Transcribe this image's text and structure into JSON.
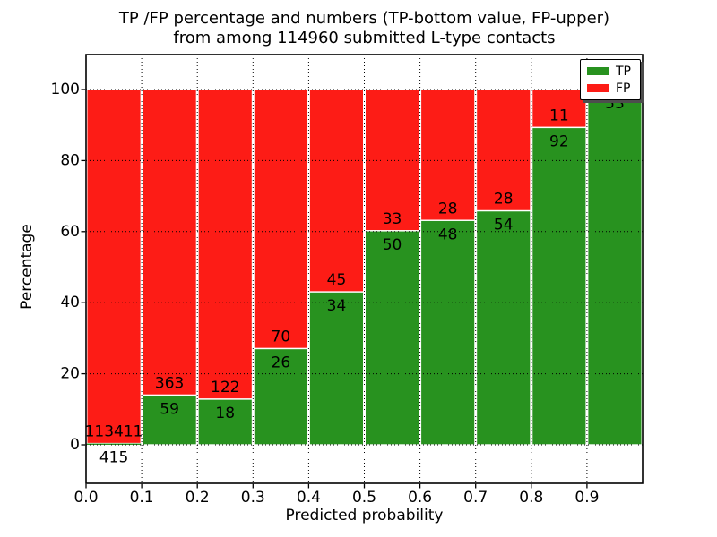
{
  "figure": {
    "title_line1": "TP /FP percentage and numbers (TP-bottom value, FP-upper)",
    "title_line2": "from among 114960 submitted L-type contacts",
    "total_submitted": 114960
  },
  "legend": {
    "position": "upper right",
    "entries": [
      {
        "label": "TP",
        "color": "#28921f"
      },
      {
        "label": "FP",
        "color": "#fd1c16"
      }
    ]
  },
  "colors": {
    "tp_green": "#28921f",
    "fp_red": "#fd1c16",
    "axis_black": "#000000",
    "background": "#ffffff",
    "bar_edge_white": "#ffffff",
    "legend_shadow_gray": "#4d4d4d"
  },
  "chart_data": {
    "type": "bar",
    "stacked": true,
    "title": "TP /FP percentage and numbers (TP-bottom value, FP-upper)\nfrom among 114960 submitted L-type contacts",
    "xlabel": "Predicted probability",
    "ylabel": "Percentage",
    "xlim": [
      0.0,
      1.0
    ],
    "ylim": [
      -11,
      110
    ],
    "grid": "dotted",
    "legend_position": "upper right",
    "x_tick_labels": [
      "0.0",
      "0.1",
      "0.2",
      "0.3",
      "0.4",
      "0.5",
      "0.6",
      "0.7",
      "0.8",
      "0.9"
    ],
    "y_tick_values": [
      0,
      20,
      40,
      60,
      80,
      100
    ],
    "bin_width": 0.1,
    "series": [
      {
        "name": "TP",
        "color": "#28921f",
        "role": "bottom segment, percent of bin"
      },
      {
        "name": "FP",
        "color": "#fd1c16",
        "role": "upper segment, percent of bin"
      }
    ],
    "bins": [
      {
        "x_start": 0.0,
        "x_end": 0.1,
        "tp_count": 415,
        "fp_count": 113411,
        "tp_pct": 0.36,
        "fp_pct": 99.64
      },
      {
        "x_start": 0.1,
        "x_end": 0.2,
        "tp_count": 59,
        "fp_count": 363,
        "tp_pct": 13.98,
        "fp_pct": 86.02
      },
      {
        "x_start": 0.2,
        "x_end": 0.3,
        "tp_count": 18,
        "fp_count": 122,
        "tp_pct": 12.86,
        "fp_pct": 87.14
      },
      {
        "x_start": 0.3,
        "x_end": 0.4,
        "tp_count": 26,
        "fp_count": 70,
        "tp_pct": 27.08,
        "fp_pct": 72.92
      },
      {
        "x_start": 0.4,
        "x_end": 0.5,
        "tp_count": 34,
        "fp_count": 45,
        "tp_pct": 43.04,
        "fp_pct": 56.96
      },
      {
        "x_start": 0.5,
        "x_end": 0.6,
        "tp_count": 50,
        "fp_count": 33,
        "tp_pct": 60.24,
        "fp_pct": 39.76
      },
      {
        "x_start": 0.6,
        "x_end": 0.7,
        "tp_count": 48,
        "fp_count": 28,
        "tp_pct": 63.16,
        "fp_pct": 36.84
      },
      {
        "x_start": 0.7,
        "x_end": 0.8,
        "tp_count": 54,
        "fp_count": 28,
        "tp_pct": 65.85,
        "fp_pct": 34.15
      },
      {
        "x_start": 0.8,
        "x_end": 0.9,
        "tp_count": 92,
        "fp_count": 11,
        "tp_pct": 89.32,
        "fp_pct": 10.68
      },
      {
        "x_start": 0.9,
        "x_end": 1.0,
        "tp_count": 53,
        "fp_count": null,
        "tp_pct": 100.0,
        "fp_pct": 0.0,
        "fp_label_hidden_by_legend": true,
        "tp_label_partially_hidden_by_legend": true
      }
    ]
  }
}
